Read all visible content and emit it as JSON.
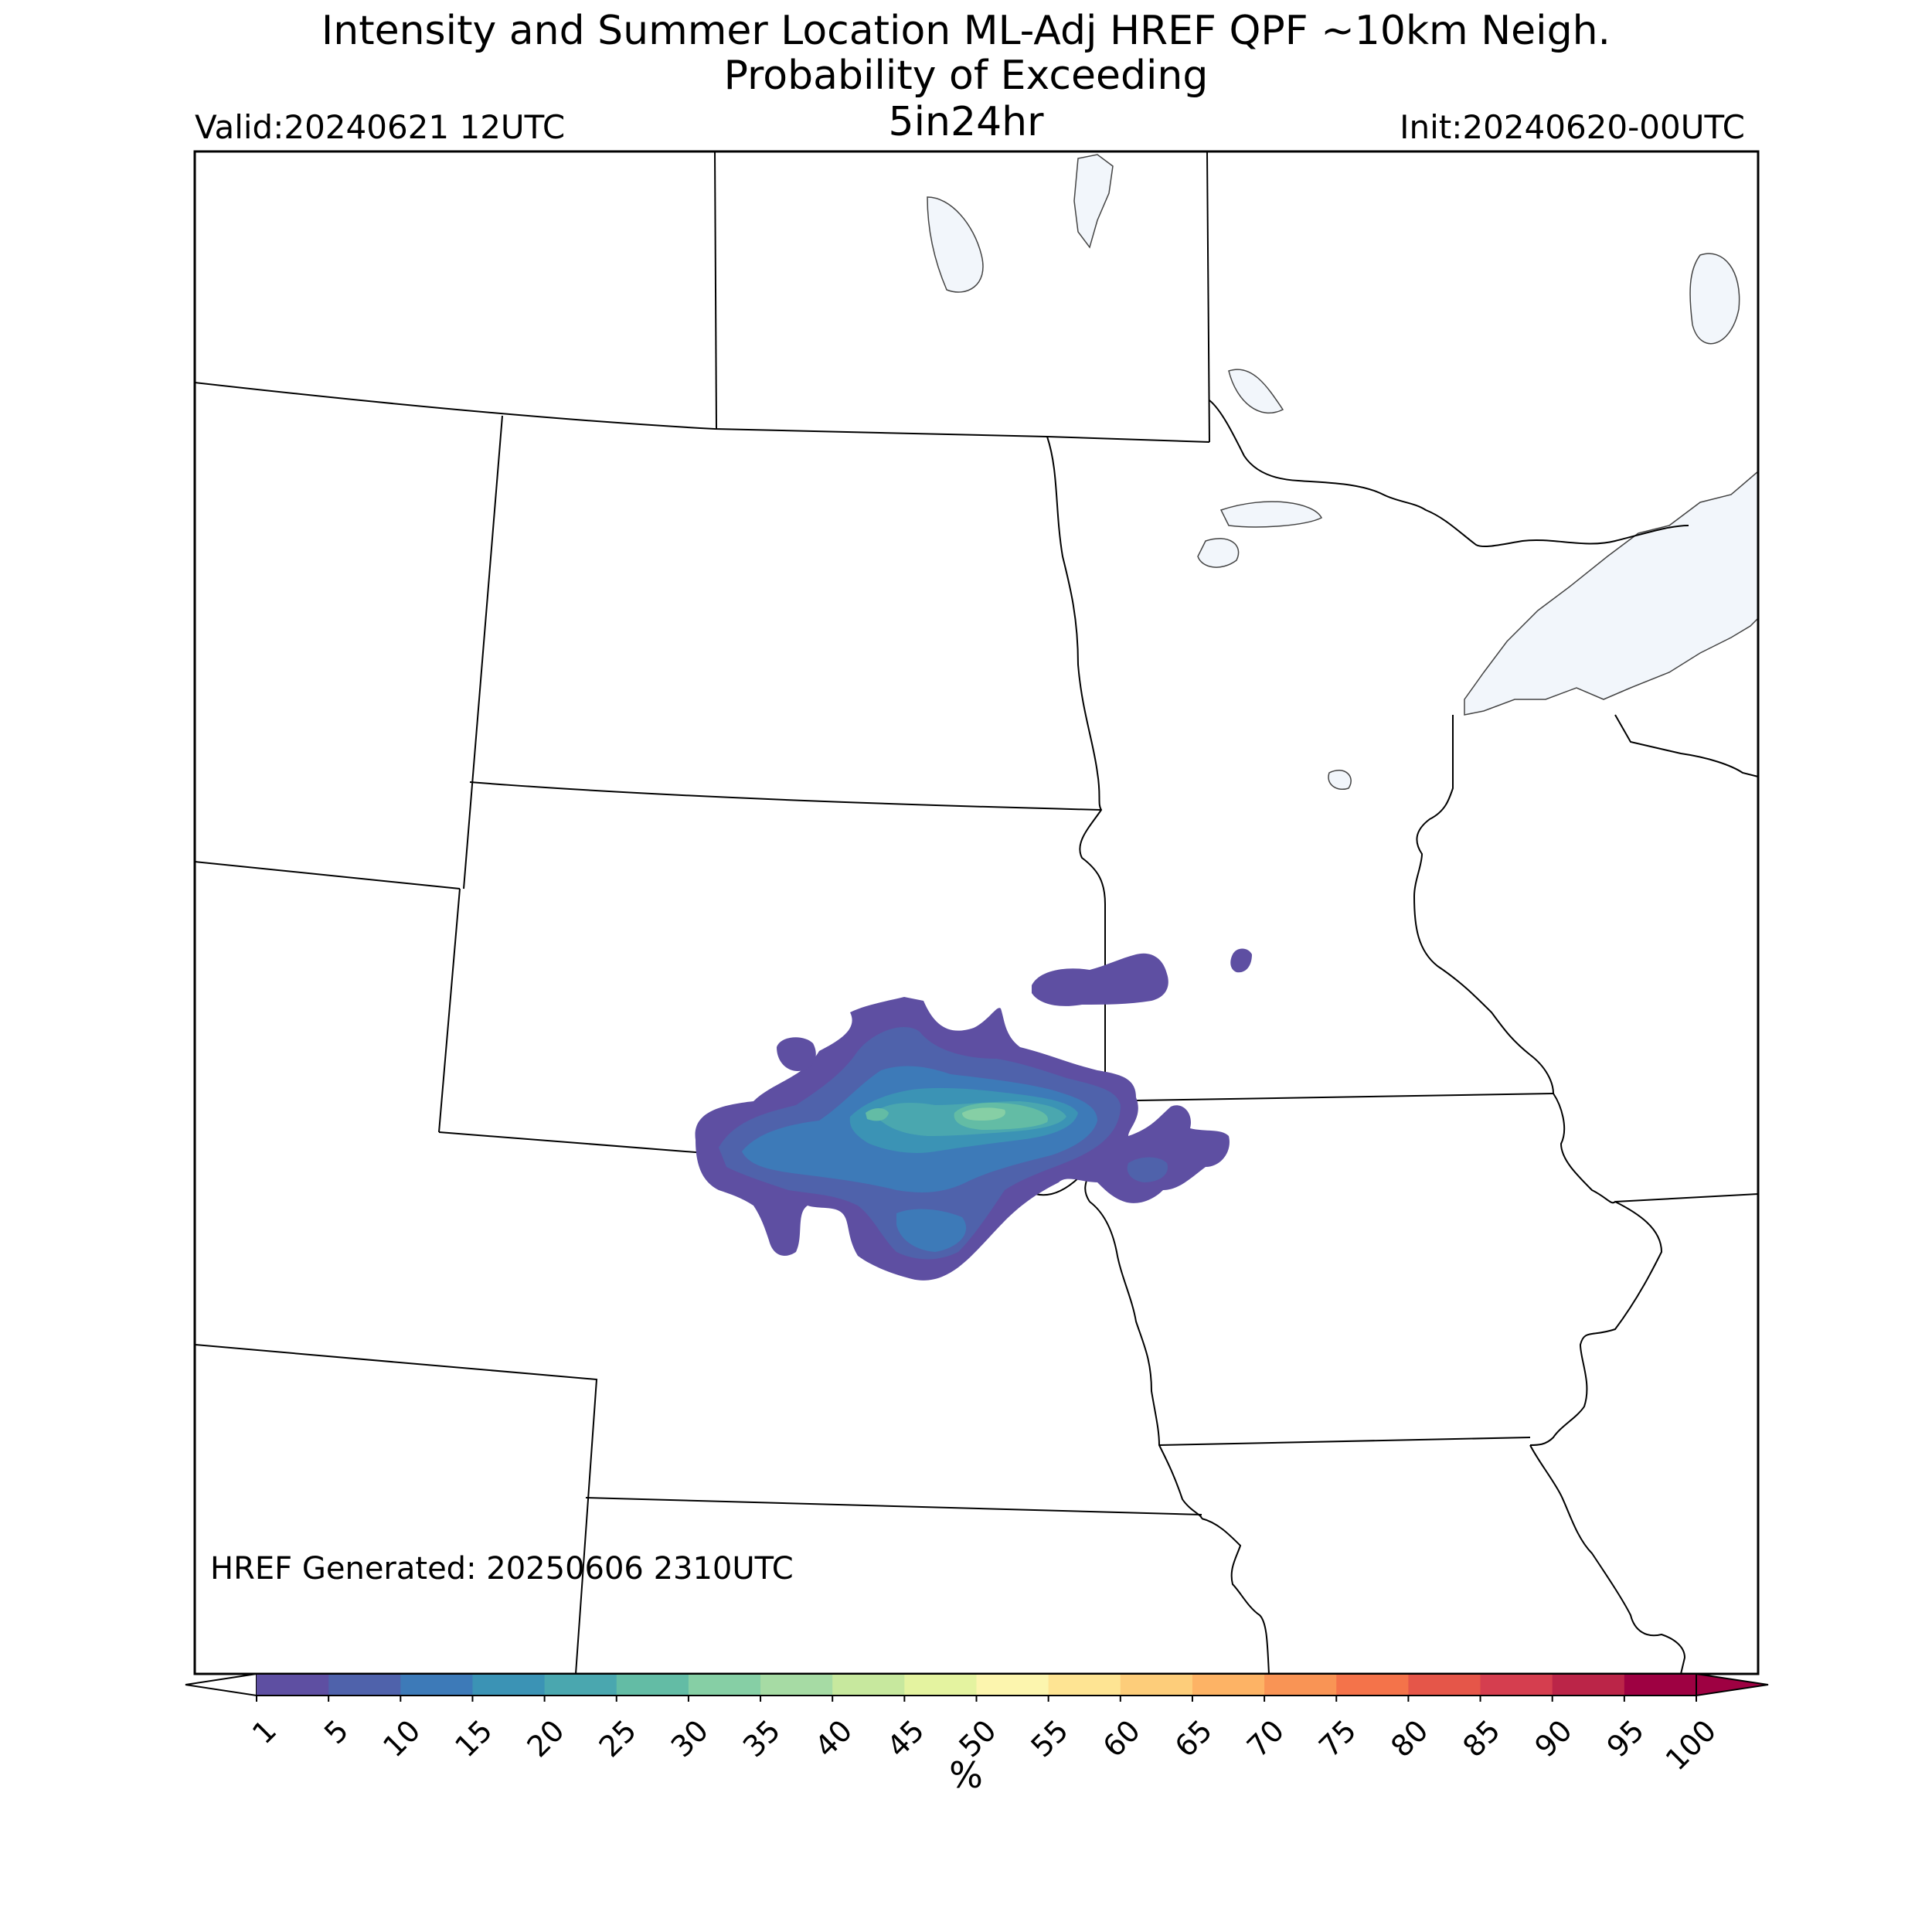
{
  "title": {
    "line1": "Intensity and Summer Location ML-Adj HREF QPF ~10km Neigh.",
    "line2": "Probability of Exceeding",
    "line3": "5in24hr"
  },
  "valid": "Valid:20240621 12UTC",
  "init": "Init:20240620-00UTC",
  "generated": "HREF Generated: 20250606 2310UTC",
  "colorbar": {
    "unit": "%",
    "ticks": [
      "1",
      "5",
      "10",
      "15",
      "20",
      "25",
      "30",
      "35",
      "40",
      "45",
      "50",
      "55",
      "60",
      "65",
      "70",
      "75",
      "80",
      "85",
      "90",
      "95",
      "100"
    ],
    "colors": [
      "#5e4fa2",
      "#4f62ab",
      "#3d7ab8",
      "#3b93b5",
      "#4aa7af",
      "#63bca5",
      "#86cfa5",
      "#a6dba4",
      "#c7e89e",
      "#e4f3a0",
      "#fcf5ae",
      "#fee493",
      "#fdcd7a",
      "#fdb365",
      "#f99455",
      "#f4734a",
      "#e55649",
      "#d53e4f",
      "#bb2548",
      "#9e0142"
    ],
    "under_color": "#ffffff",
    "over_color": "#9e0142"
  },
  "map": {
    "land_color": "#ffffff",
    "water_color": "#f2f6fb",
    "border_color": "#000000"
  }
}
